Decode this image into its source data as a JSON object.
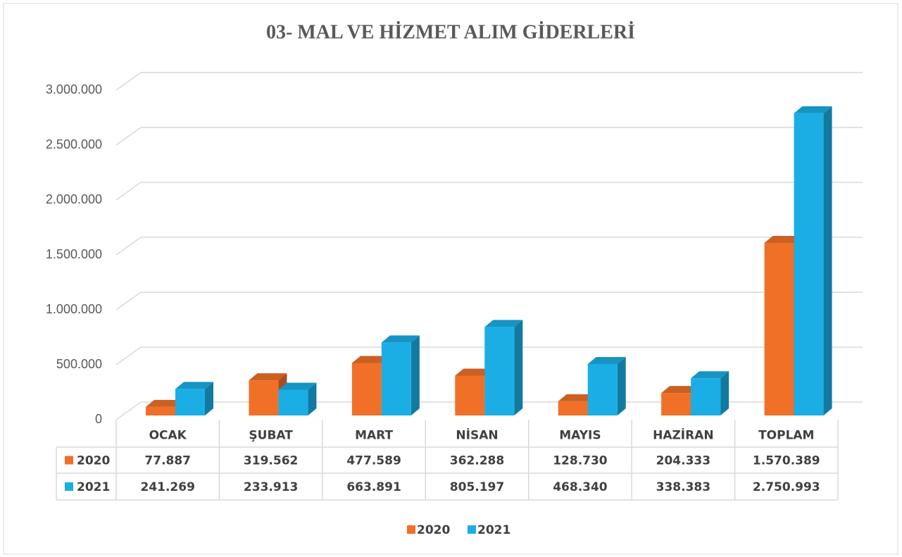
{
  "chart_data": {
    "type": "bar3d",
    "title": "03- MAL VE HİZMET ALIM GİDERLERİ",
    "categories": [
      "OCAK",
      "ŞUBAT",
      "MART",
      "NİSAN",
      "MAYIS",
      "HAZİRAN",
      "TOPLAM"
    ],
    "series": [
      {
        "name": "2020",
        "color": "#f07028",
        "values": [
          77887,
          319562,
          477589,
          362288,
          128730,
          204333,
          1570389
        ],
        "value_labels": [
          "77.887",
          "319.562",
          "477.589",
          "362.288",
          "128.730",
          "204.333",
          "1.570.389"
        ]
      },
      {
        "name": "2021",
        "color": "#1aaee5",
        "values": [
          241269,
          233913,
          663891,
          805197,
          468340,
          338383,
          2750993
        ],
        "value_labels": [
          "241.269",
          "233.913",
          "663.891",
          "805.197",
          "468.340",
          "338.383",
          "2.750.993"
        ]
      }
    ],
    "ylim": [
      0,
      3000000
    ],
    "yticks": [
      0,
      {
        "value": 500000,
        "label": "500.000"
      },
      {
        "value": 1000000,
        "label": "1.000.000"
      },
      {
        "value": 1500000,
        "label": "1.500.000"
      },
      {
        "value": 2000000,
        "label": "2.000.000"
      },
      {
        "value": 2500000,
        "label": "2.500.000"
      },
      {
        "value": 3000000,
        "label": "3.000.000"
      }
    ],
    "grid": true,
    "legend": "bottom"
  }
}
